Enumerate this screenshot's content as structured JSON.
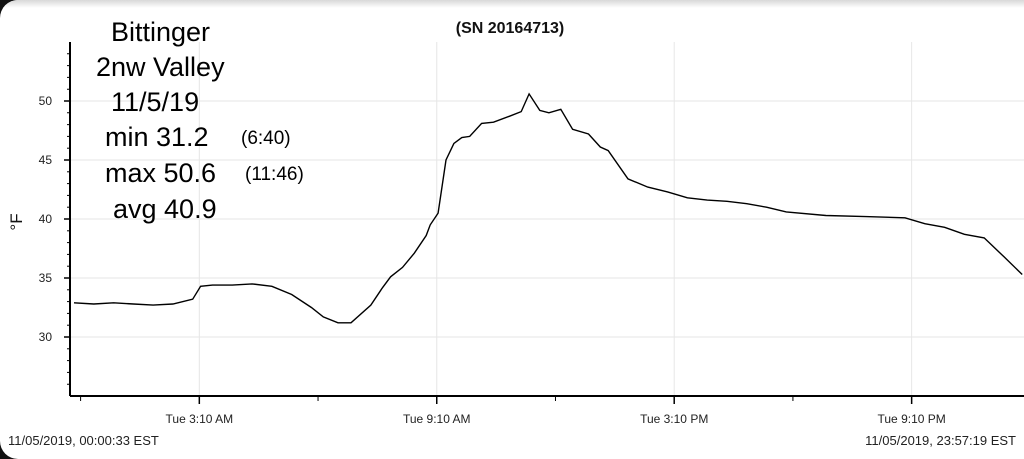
{
  "chart_data": {
    "type": "line",
    "title": "(SN 20164713)",
    "ylabel": "°F",
    "ylim": [
      25,
      55
    ],
    "yticks": [
      30,
      35,
      40,
      45,
      50
    ],
    "xtick_labels": [
      "Tue 3:10 AM",
      "Tue 9:10 AM",
      "Tue 3:10 PM",
      "Tue 9:10 PM"
    ],
    "xtick_hours": [
      3.1667,
      9.1667,
      15.1667,
      21.1667
    ],
    "x_range_hours": [
      0,
      23.9553
    ],
    "grid": true,
    "series": [
      {
        "x": [
          0.0,
          0.5,
          1.0,
          1.5,
          2.0,
          2.5,
          3.0,
          3.2,
          3.5,
          4.0,
          4.5,
          5.0,
          5.5,
          6.0,
          6.3,
          6.67,
          7.0,
          7.5,
          7.8,
          8.0,
          8.3,
          8.6,
          8.9,
          9.0,
          9.2,
          9.4,
          9.6,
          9.8,
          10.0,
          10.3,
          10.6,
          11.0,
          11.3,
          11.5,
          11.77,
          12.0,
          12.3,
          12.6,
          13.0,
          13.3,
          13.5,
          14.0,
          14.5,
          15.0,
          15.5,
          16.0,
          16.5,
          17.0,
          17.5,
          18.0,
          19.0,
          20.0,
          21.0,
          21.5,
          22.0,
          22.5,
          23.0,
          23.5,
          23.96
        ],
        "y": [
          32.9,
          32.8,
          32.9,
          32.8,
          32.7,
          32.8,
          33.2,
          34.3,
          34.4,
          34.4,
          34.5,
          34.3,
          33.6,
          32.5,
          31.7,
          31.2,
          31.2,
          32.7,
          34.2,
          35.1,
          35.9,
          37.1,
          38.6,
          39.5,
          40.5,
          45.0,
          46.4,
          46.9,
          47.0,
          48.1,
          48.2,
          48.7,
          49.1,
          50.6,
          49.2,
          49.0,
          49.3,
          47.6,
          47.2,
          46.1,
          45.8,
          43.4,
          42.7,
          42.3,
          41.8,
          41.6,
          41.5,
          41.3,
          41.0,
          40.6,
          40.3,
          40.2,
          40.1,
          39.6,
          39.3,
          38.7,
          38.4,
          36.8,
          35.3
        ]
      }
    ],
    "start_stamp": "11/05/2019, 00:00:33 EST",
    "end_stamp": "11/05/2019, 23:57:19 EST"
  },
  "annotations": {
    "location_line1": "Bittinger",
    "location_line2": "2nw Valley",
    "date": "11/5/19",
    "min_label": "min 31.2",
    "min_time": "(6:40)",
    "max_label": "max 50.6",
    "max_time": "(11:46)",
    "avg_label": "avg 40.9"
  }
}
